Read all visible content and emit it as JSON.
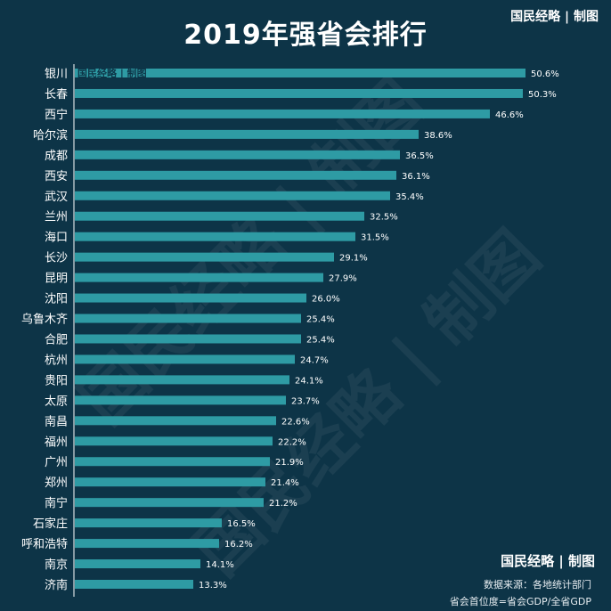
{
  "title": "2019年强省会排行",
  "brand": "国民经略 | 制图",
  "source": "数据来源：各地统计部门",
  "formula": "省会首位度=省会GDP/全省GDP",
  "colors": {
    "background": "#0d3447",
    "bar": "#2e9ba4",
    "text": "#ffffff"
  },
  "chart_data": {
    "type": "bar",
    "orientation": "horizontal",
    "categories": [
      "银川",
      "长春",
      "西宁",
      "哈尔滨",
      "成都",
      "西安",
      "武汉",
      "兰州",
      "海口",
      "长沙",
      "昆明",
      "沈阳",
      "乌鲁木齐",
      "合肥",
      "杭州",
      "贵阳",
      "太原",
      "南昌",
      "福州",
      "广州",
      "郑州",
      "南宁",
      "石家庄",
      "呼和浩特",
      "南京",
      "济南"
    ],
    "values": [
      50.6,
      50.3,
      46.6,
      38.6,
      36.5,
      36.1,
      35.4,
      32.5,
      31.5,
      29.1,
      27.9,
      26.0,
      25.4,
      25.4,
      24.7,
      24.1,
      23.7,
      22.6,
      22.2,
      21.9,
      21.4,
      21.2,
      16.5,
      16.2,
      14.1,
      13.3
    ],
    "value_labels": [
      "50.6%",
      "50.3%",
      "46.6%",
      "38.6%",
      "36.5%",
      "36.1%",
      "35.4%",
      "32.5%",
      "31.5%",
      "29.1%",
      "27.9%",
      "26.0%",
      "25.4%",
      "25.4%",
      "24.7%",
      "24.1%",
      "23.7%",
      "22.6%",
      "22.2%",
      "21.9%",
      "21.4%",
      "21.2%",
      "16.5%",
      "16.2%",
      "14.1%",
      "13.3%"
    ],
    "unit": "%",
    "grid": false,
    "legend": "none"
  }
}
